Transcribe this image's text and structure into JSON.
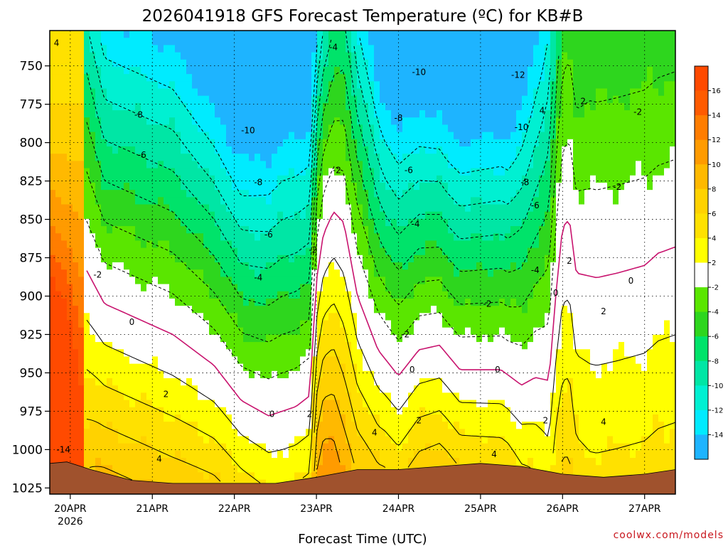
{
  "chart_data": {
    "type": "heatmap",
    "title": "2026041918 GFS Forecast Temperature (ºC) for KB#B",
    "xlabel": "Forecast Time (UTC)",
    "ylabel": "",
    "credit": "coolwx.com/models",
    "x_ticks": [
      {
        "label": "20APR",
        "sub": "2026",
        "value": 0
      },
      {
        "label": "21APR",
        "value": 24
      },
      {
        "label": "22APR",
        "value": 48
      },
      {
        "label": "23APR",
        "value": 72
      },
      {
        "label": "24APR",
        "value": 96
      },
      {
        "label": "25APR",
        "value": 120
      },
      {
        "label": "26APR",
        "value": 144
      },
      {
        "label": "27APR",
        "value": 168
      }
    ],
    "xlim_hours": [
      -6,
      177
    ],
    "y_levels": [
      750,
      775,
      800,
      825,
      850,
      875,
      900,
      925,
      950,
      975,
      1000,
      1025
    ],
    "ylim_hpa": [
      1029,
      727
    ],
    "colorbar": {
      "ticks": [
        16,
        14,
        12,
        10,
        8,
        6,
        4,
        2,
        -2,
        -4,
        -6,
        -8,
        -10,
        -12,
        -14
      ],
      "bands": [
        {
          "range": [
            16,
            18
          ],
          "color": "#ff4a00"
        },
        {
          "range": [
            14,
            16
          ],
          "color": "#ff5b00"
        },
        {
          "range": [
            12,
            14
          ],
          "color": "#ff7d00"
        },
        {
          "range": [
            10,
            12
          ],
          "color": "#ff9b00"
        },
        {
          "range": [
            8,
            10
          ],
          "color": "#ffb900"
        },
        {
          "range": [
            6,
            8
          ],
          "color": "#ffd200"
        },
        {
          "range": [
            4,
            6
          ],
          "color": "#ffe100"
        },
        {
          "range": [
            2,
            4
          ],
          "color": "#ffff00"
        },
        {
          "range": [
            -2,
            2
          ],
          "color": "#ffffff"
        },
        {
          "range": [
            -4,
            -2
          ],
          "color": "#5ae600"
        },
        {
          "range": [
            -6,
            -4
          ],
          "color": "#2ed61e"
        },
        {
          "range": [
            -8,
            -6
          ],
          "color": "#00e36a"
        },
        {
          "range": [
            -10,
            -8
          ],
          "color": "#00e6a5"
        },
        {
          "range": [
            -12,
            -10
          ],
          "color": "#00f0d2"
        },
        {
          "range": [
            -14,
            -12
          ],
          "color": "#00ebff"
        },
        {
          "range": [
            -16,
            -14
          ],
          "color": "#1eb4ff"
        }
      ]
    },
    "ground_color": "#a0522d",
    "zero_line_color": "#c8136e",
    "contour_labels": [
      {
        "text": "4",
        "hour": -4,
        "hpa": 735
      },
      {
        "text": "-4",
        "hour": 77,
        "hpa": 738
      },
      {
        "text": "-10",
        "hour": 102,
        "hpa": 754
      },
      {
        "text": "-12",
        "hour": 131,
        "hpa": 756
      },
      {
        "text": "-8",
        "hour": 20,
        "hpa": 782
      },
      {
        "text": "-8",
        "hour": 96,
        "hpa": 784
      },
      {
        "text": "2",
        "hour": 150,
        "hpa": 773
      },
      {
        "text": "4",
        "hour": 138,
        "hpa": 779
      },
      {
        "text": "-2",
        "hour": 166,
        "hpa": 780
      },
      {
        "text": "-10",
        "hour": 52,
        "hpa": 792
      },
      {
        "text": "-10",
        "hour": 132,
        "hpa": 790
      },
      {
        "text": "-6",
        "hour": 21,
        "hpa": 808
      },
      {
        "text": "-6",
        "hour": 99,
        "hpa": 818
      },
      {
        "text": "-2",
        "hour": 78,
        "hpa": 818
      },
      {
        "text": "-8",
        "hour": 55,
        "hpa": 826
      },
      {
        "text": "-8",
        "hour": 133,
        "hpa": 826
      },
      {
        "text": "-2",
        "hour": 160,
        "hpa": 829
      },
      {
        "text": "-6",
        "hour": 136,
        "hpa": 841
      },
      {
        "text": "-4",
        "hour": 101,
        "hpa": 853
      },
      {
        "text": "-6",
        "hour": 58,
        "hpa": 860
      },
      {
        "text": "-2",
        "hour": 71,
        "hpa": 870
      },
      {
        "text": "-4",
        "hour": 136,
        "hpa": 883
      },
      {
        "text": "2",
        "hour": 146,
        "hpa": 877
      },
      {
        "text": "-2",
        "hour": 8,
        "hpa": 886
      },
      {
        "text": "-4",
        "hour": 55,
        "hpa": 888
      },
      {
        "text": "0",
        "hour": 164,
        "hpa": 890
      },
      {
        "text": "0",
        "hour": 142,
        "hpa": 898
      },
      {
        "text": "-2",
        "hour": 122,
        "hpa": 905
      },
      {
        "text": "2",
        "hour": 156,
        "hpa": 910
      },
      {
        "text": "0",
        "hour": 18,
        "hpa": 917
      },
      {
        "text": "-2",
        "hour": 98,
        "hpa": 925
      },
      {
        "text": "0",
        "hour": 100,
        "hpa": 948
      },
      {
        "text": "0",
        "hour": 125,
        "hpa": 948
      },
      {
        "text": "2",
        "hour": 28,
        "hpa": 964
      },
      {
        "text": "0",
        "hour": 59,
        "hpa": 977
      },
      {
        "text": "2",
        "hour": 70,
        "hpa": 977
      },
      {
        "text": "2",
        "hour": 102,
        "hpa": 981
      },
      {
        "text": "2",
        "hour": 139,
        "hpa": 981
      },
      {
        "text": "4",
        "hour": 156,
        "hpa": 982
      },
      {
        "text": "4",
        "hour": 89,
        "hpa": 989
      },
      {
        "text": "-14",
        "hour": -2,
        "hpa": 1000
      },
      {
        "text": "4",
        "hour": 26,
        "hpa": 1006
      },
      {
        "text": "4",
        "hour": 124,
        "hpa": 1003
      }
    ]
  }
}
